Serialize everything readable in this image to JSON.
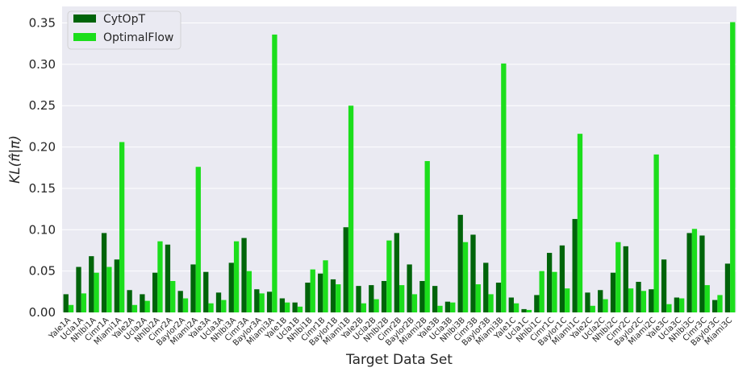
{
  "chart_data": {
    "type": "bar",
    "xlabel": "Target Data Set",
    "ylabel": "KL(π̂|π)",
    "ylim": [
      0,
      0.37
    ],
    "yticks": [
      "0.00",
      "0.05",
      "0.10",
      "0.15",
      "0.20",
      "0.25",
      "0.30",
      "0.35"
    ],
    "grid": true,
    "legend_position": "top-left",
    "background": "#eaeaf2",
    "categories": [
      "Yale1A",
      "Ucla1A",
      "Nhlbi1A",
      "Cimr1A",
      "Miami1A",
      "Yale2A",
      "Ucla2A",
      "Nhlbi2A",
      "Cimr2A",
      "Baylor2A",
      "Miami2A",
      "Yale3A",
      "Ucla3A",
      "Nhlbi3A",
      "Cimr3A",
      "Baylor3A",
      "Miami3A",
      "Yale1B",
      "Ucla1B",
      "Nhlbi1B",
      "Cimr1B",
      "Baylor1B",
      "Miami1B",
      "Yale2B",
      "Ucla2B",
      "Nhlbi2B",
      "Cimr2B",
      "Baylor2B",
      "Miami2B",
      "Yale3B",
      "Ucla3B",
      "Nhlbi3B",
      "Cimr3B",
      "Baylor3B",
      "Miami3B",
      "Yale1C",
      "Ucla1C",
      "Nhlbi1C",
      "Cimr1C",
      "Baylor1C",
      "Miami1C",
      "Yale2C",
      "Ucla2C",
      "Nhlbi2C",
      "Cimr2C",
      "Baylor2C",
      "Miami2C",
      "Yale3C",
      "Ucla3C",
      "Nhlbi3C",
      "Cimr3C",
      "Baylor3C",
      "Miami3C"
    ],
    "series": [
      {
        "name": "CytOpT",
        "color": "#00640a",
        "values": [
          0.022,
          0.055,
          0.068,
          0.096,
          0.064,
          0.027,
          0.022,
          0.048,
          0.082,
          0.026,
          0.058,
          0.049,
          0.024,
          0.06,
          0.09,
          0.028,
          0.025,
          0.017,
          0.012,
          0.036,
          0.047,
          0.04,
          0.103,
          0.032,
          0.033,
          0.038,
          0.096,
          0.058,
          0.038,
          0.032,
          0.013,
          0.118,
          0.094,
          0.06,
          0.036,
          0.018,
          0.004,
          0.021,
          0.072,
          0.081,
          0.113,
          0.024,
          0.027,
          0.048,
          0.08,
          0.037,
          0.028,
          0.064,
          0.018,
          0.096,
          0.093,
          0.015,
          0.059
        ]
      },
      {
        "name": "OptimalFlow",
        "color": "#1cde1c",
        "values": [
          0.009,
          0.023,
          0.048,
          0.055,
          0.206,
          0.009,
          0.014,
          0.086,
          0.038,
          0.017,
          0.176,
          0.011,
          0.015,
          0.086,
          0.05,
          0.023,
          0.336,
          0.012,
          0.007,
          0.052,
          0.063,
          0.034,
          0.25,
          0.011,
          0.016,
          0.087,
          0.033,
          0.022,
          0.183,
          0.008,
          0.012,
          0.085,
          0.034,
          0.022,
          0.301,
          0.011,
          0.003,
          0.05,
          0.049,
          0.029,
          0.216,
          0.008,
          0.016,
          0.085,
          0.029,
          0.026,
          0.191,
          0.01,
          0.017,
          0.101,
          0.033,
          0.021,
          0.351
        ]
      }
    ]
  }
}
